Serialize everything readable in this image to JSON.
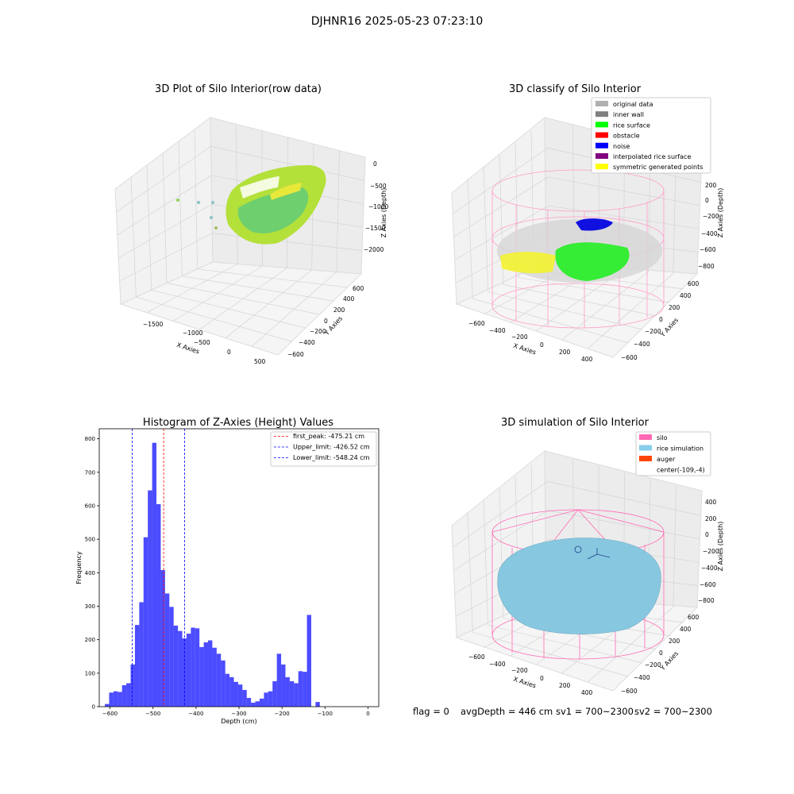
{
  "figure": {
    "suptitle": "DJHNR16 2025-05-23 07:23:10",
    "footer": {
      "flag": "flag = 0",
      "avg": "avgDepth = 446 cm",
      "sv1": "sv1 = 700~2300",
      "sv2": "sv2 = 700~2300"
    }
  },
  "panels": {
    "raw": {
      "title": "3D Plot of Silo Interior(row data)",
      "xlabel": "X Axies",
      "ylabel": "Y Axies",
      "zlabel": "Z Axies (Depth)",
      "xticks": [
        "−1500",
        "−1000",
        "−500",
        "0",
        "500"
      ],
      "yticks": [
        "600",
        "400",
        "200",
        "0",
        "−200",
        "−400",
        "−600"
      ],
      "zticks": [
        "0",
        "−500",
        "−1000",
        "−1500",
        "−2000"
      ]
    },
    "classify": {
      "title": "3D classify of Silo Interior",
      "xlabel": "X Axies",
      "ylabel": "Y Axies",
      "zlabel": "Z Axies (Depth)",
      "xticks": [
        "−600",
        "−400",
        "−200",
        "0",
        "200",
        "400"
      ],
      "yticks": [
        "600",
        "400",
        "200",
        "0",
        "−200",
        "−400",
        "−600"
      ],
      "zticks": [
        "200",
        "0",
        "−200",
        "−400",
        "−600",
        "−800"
      ],
      "legend": [
        {
          "label": "original data",
          "color": "#b0b0b0"
        },
        {
          "label": "inner wall",
          "color": "#808080"
        },
        {
          "label": "rice surface",
          "color": "#00ff00"
        },
        {
          "label": "obstacle",
          "color": "#ff0000"
        },
        {
          "label": "noise",
          "color": "#0000ff"
        },
        {
          "label": "interpolated rice surface",
          "color": "#800080"
        },
        {
          "label": "symmetric generated points",
          "color": "#ffff00"
        }
      ]
    },
    "simulation": {
      "title": "3D simulation of Silo Interior",
      "xlabel": "X Axies",
      "ylabel": "Y Axies",
      "zlabel": "Z Axies (Depth)",
      "xticks": [
        "−600",
        "−400",
        "−200",
        "0",
        "200",
        "400"
      ],
      "yticks": [
        "600",
        "400",
        "200",
        "0",
        "−200",
        "−400",
        "−600"
      ],
      "zticks": [
        "400",
        "200",
        "0",
        "−200",
        "−400",
        "−600",
        "−800"
      ],
      "legend": [
        {
          "label": "silo",
          "color": "#ff69b4"
        },
        {
          "label": "rice simulation",
          "color": "#87ceeb"
        },
        {
          "label": "auger",
          "color": "#ff4500"
        },
        {
          "label": "center(-109,-4)",
          "color": ""
        }
      ]
    }
  },
  "chart_data": {
    "type": "bar",
    "title": "Histogram of Z-Axies (Height) Values",
    "xlabel": "Depth (cm)",
    "ylabel": "Frequency",
    "xlim": [
      -625,
      25
    ],
    "ylim": [
      0,
      830
    ],
    "xticks": [
      -600,
      -500,
      -400,
      -300,
      -200,
      -100,
      0
    ],
    "yticks": [
      0,
      100,
      200,
      300,
      400,
      500,
      600,
      700,
      800
    ],
    "bar_color": "#0000ff",
    "bin_width": 10,
    "bin_starts": [
      -612,
      -602,
      -592,
      -582,
      -572,
      -562,
      -552,
      -542,
      -532,
      -522,
      -512,
      -502,
      -492,
      -482,
      -472,
      -462,
      -452,
      -442,
      -432,
      -422,
      -412,
      -402,
      -392,
      -382,
      -372,
      -362,
      -352,
      -342,
      -332,
      -322,
      -312,
      -302,
      -292,
      -282,
      -272,
      -262,
      -252,
      -242,
      -232,
      -222,
      -212,
      -202,
      -192,
      -182,
      -172,
      -162,
      -152,
      -142,
      -132,
      -122,
      -112,
      -102,
      -92,
      -82,
      -72,
      -62,
      -52,
      -42,
      -32,
      -22,
      -12,
      -2
    ],
    "values": [
      8,
      42,
      46,
      44,
      64,
      70,
      126,
      244,
      312,
      506,
      646,
      788,
      605,
      408,
      338,
      298,
      242,
      226,
      204,
      218,
      236,
      234,
      178,
      192,
      198,
      176,
      158,
      138,
      98,
      88,
      74,
      66,
      50,
      26,
      12,
      16,
      24,
      42,
      46,
      76,
      158,
      126,
      88,
      76,
      70,
      106,
      104,
      274,
      0,
      14,
      0,
      0,
      0,
      0,
      0,
      0,
      0,
      0,
      0,
      0,
      0,
      0
    ],
    "vlines": [
      {
        "x": -475.21,
        "label": "first_peak: -475.21 cm",
        "color": "#ff0000"
      },
      {
        "x": -426.52,
        "label": "Upper_limit: -426.52 cm",
        "color": "#0000ff"
      },
      {
        "x": -548.24,
        "label": "Lower_limit: -548.24 cm",
        "color": "#0000ff"
      }
    ],
    "legend_position": "top-right"
  }
}
